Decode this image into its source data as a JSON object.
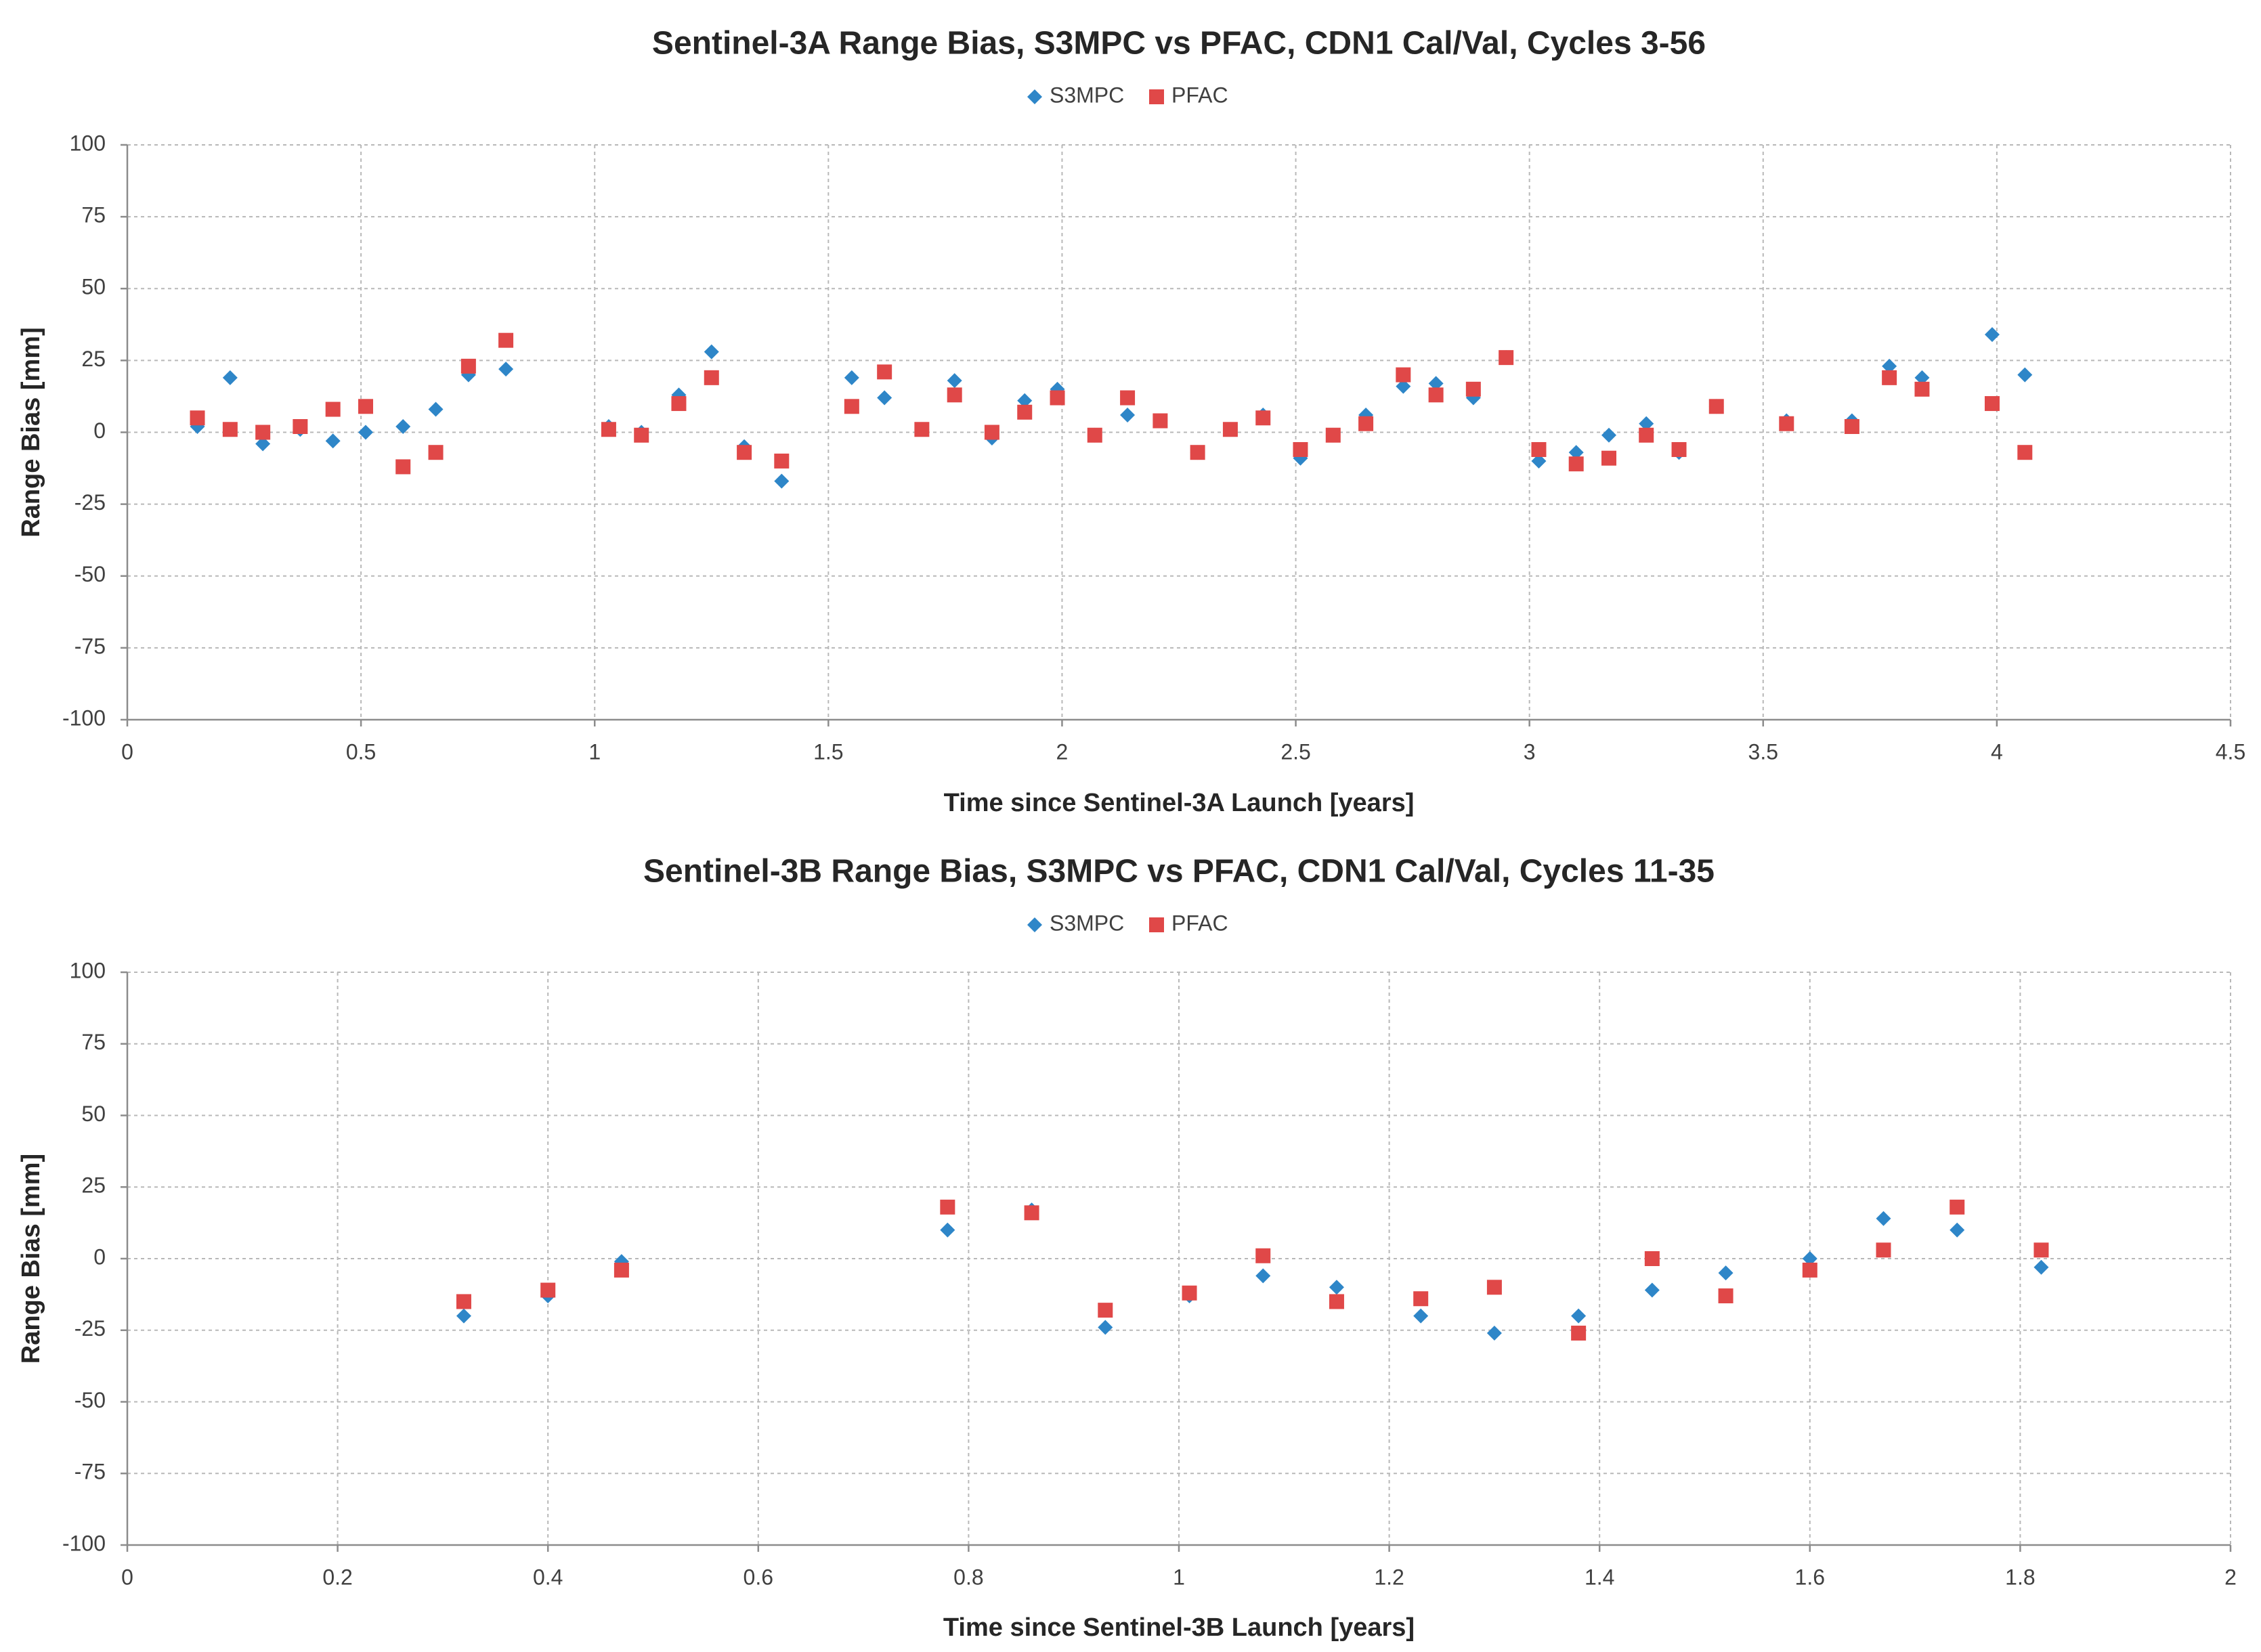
{
  "chart_data": [
    {
      "type": "scatter",
      "title": "Sentinel-3A Range Bias, S3MPC vs PFAC, CDN1 Cal/Val, Cycles 3-56",
      "xlabel": "Time since Sentinel-3A Launch [years]",
      "ylabel": "Range Bias [mm]",
      "xlim": [
        0,
        4.5
      ],
      "ylim": [
        -100,
        100
      ],
      "xticks": [
        0,
        0.5,
        1,
        1.5,
        2,
        2.5,
        3,
        3.5,
        4,
        4.5
      ],
      "xtick_labels": [
        "0",
        "0.5",
        "1",
        "1.5",
        "2",
        "2.5",
        "3",
        "3.5",
        "4",
        "4.5"
      ],
      "yticks": [
        -100,
        -75,
        -50,
        -25,
        0,
        25,
        50,
        75,
        100
      ],
      "ytick_labels": [
        "-100",
        "-75",
        "-50",
        "-25",
        "0",
        "25",
        "50",
        "75",
        "100"
      ],
      "grid": true,
      "legend_position": "top-center",
      "series": [
        {
          "name": "S3MPC",
          "marker": "diamond",
          "color": "#2e86c8",
          "x": [
            0.15,
            0.22,
            0.29,
            0.37,
            0.44,
            0.51,
            0.59,
            0.66,
            0.73,
            0.81,
            1.03,
            1.1,
            1.18,
            1.25,
            1.32,
            1.4,
            1.55,
            1.62,
            1.7,
            1.77,
            1.85,
            1.92,
            1.99,
            2.07,
            2.14,
            2.21,
            2.29,
            2.36,
            2.43,
            2.51,
            2.58,
            2.65,
            2.73,
            2.8,
            2.88,
            2.95,
            3.02,
            3.1,
            3.17,
            3.25,
            3.32,
            3.4,
            3.55,
            3.69,
            3.77,
            3.84,
            3.99,
            4.06
          ],
          "y": [
            2,
            19,
            -4,
            1,
            -3,
            0,
            2,
            8,
            20,
            22,
            2,
            0,
            13,
            28,
            -5,
            -17,
            19,
            12,
            1,
            18,
            -2,
            11,
            15,
            -1,
            6,
            4,
            -7,
            1,
            6,
            -9,
            -1,
            6,
            16,
            17,
            12,
            26,
            -10,
            -7,
            -1,
            3,
            -7,
            9,
            4,
            4,
            23,
            19,
            34,
            20
          ]
        },
        {
          "name": "PFAC",
          "marker": "square",
          "color": "#e04848",
          "x": [
            0.15,
            0.22,
            0.29,
            0.37,
            0.44,
            0.51,
            0.59,
            0.66,
            0.73,
            0.81,
            1.03,
            1.1,
            1.18,
            1.25,
            1.32,
            1.4,
            1.55,
            1.62,
            1.7,
            1.77,
            1.85,
            1.92,
            1.99,
            2.07,
            2.14,
            2.21,
            2.29,
            2.36,
            2.43,
            2.51,
            2.58,
            2.65,
            2.73,
            2.8,
            2.88,
            2.95,
            3.02,
            3.1,
            3.17,
            3.25,
            3.32,
            3.4,
            3.55,
            3.69,
            3.77,
            3.84,
            3.99,
            4.06
          ],
          "y": [
            5,
            1,
            0,
            2,
            8,
            9,
            -12,
            -7,
            23,
            32,
            1,
            -1,
            10,
            19,
            -7,
            -10,
            9,
            21,
            1,
            13,
            0,
            7,
            12,
            -1,
            12,
            4,
            -7,
            1,
            5,
            -6,
            -1,
            3,
            20,
            13,
            15,
            26,
            -6,
            -11,
            -9,
            -1,
            -6,
            9,
            3,
            2,
            19,
            15,
            10,
            -7
          ]
        }
      ]
    },
    {
      "type": "scatter",
      "title": "Sentinel-3B Range Bias, S3MPC vs PFAC, CDN1 Cal/Val, Cycles 11-35",
      "xlabel": "Time since Sentinel-3B Launch [years]",
      "ylabel": "Range Bias [mm]",
      "xlim": [
        0,
        2
      ],
      "ylim": [
        -100,
        100
      ],
      "xticks": [
        0,
        0.2,
        0.4,
        0.6,
        0.8,
        1,
        1.2,
        1.4,
        1.6,
        1.8,
        2
      ],
      "xtick_labels": [
        "0",
        "0.2",
        "0.4",
        "0.6",
        "0.8",
        "1",
        "1.2",
        "1.4",
        "1.6",
        "1.8",
        "2"
      ],
      "yticks": [
        -100,
        -75,
        -50,
        -25,
        0,
        25,
        50,
        75,
        100
      ],
      "ytick_labels": [
        "-100",
        "-75",
        "-50",
        "-25",
        "0",
        "25",
        "50",
        "75",
        "100"
      ],
      "grid": true,
      "legend_position": "top-center",
      "series": [
        {
          "name": "S3MPC",
          "marker": "diamond",
          "color": "#2e86c8",
          "x": [
            0.32,
            0.4,
            0.47,
            0.78,
            0.86,
            0.93,
            1.01,
            1.08,
            1.15,
            1.23,
            1.3,
            1.38,
            1.45,
            1.52,
            1.6,
            1.67,
            1.74,
            1.82
          ],
          "y": [
            -20,
            -13,
            -1,
            10,
            17,
            -24,
            -13,
            -6,
            -10,
            -20,
            -26,
            -20,
            -11,
            -5,
            0,
            14,
            10,
            -3
          ]
        },
        {
          "name": "PFAC",
          "marker": "square",
          "color": "#e04848",
          "x": [
            0.32,
            0.4,
            0.47,
            0.78,
            0.86,
            0.93,
            1.01,
            1.08,
            1.15,
            1.23,
            1.3,
            1.38,
            1.45,
            1.52,
            1.6,
            1.67,
            1.74,
            1.82
          ],
          "y": [
            -15,
            -11,
            -4,
            18,
            16,
            -18,
            -12,
            1,
            -15,
            -14,
            -10,
            -26,
            0,
            -13,
            -4,
            3,
            18,
            3
          ]
        }
      ]
    }
  ]
}
